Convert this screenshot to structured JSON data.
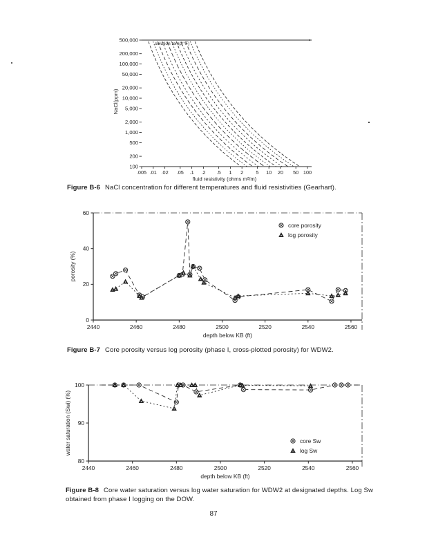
{
  "page": {
    "number": "87"
  },
  "figures": [
    {
      "id": "b6",
      "caption_label": "Figure B-6",
      "caption_text": "NaCl concentration for different temperatures and fluid resistivities (Gearhart)."
    },
    {
      "id": "b7",
      "caption_label": "Figure B-7",
      "caption_text": "Core porosity versus log porosity (phase I, cross-plotted porosity) for WDW2."
    },
    {
      "id": "b8",
      "caption_label": "Figure B-8",
      "caption_text": "Core water saturation versus log water saturation for WDW2 at designated depths. Log Sw obtained from phase I logging on the DOW."
    }
  ],
  "chart_data": [
    {
      "id": "b6",
      "type": "line",
      "log_x": true,
      "log_y": true,
      "annotation": "solution temp(°F)",
      "ylabel": "NaCl(ppm)",
      "xlabel": "fluid resistivity (ohms m²/m)",
      "xlim": [
        0.005,
        100
      ],
      "ylim": [
        100,
        500000
      ],
      "x_ticks": [
        {
          "label": ".005",
          "value": 0.005
        },
        {
          "label": ".01",
          "value": 0.01
        },
        {
          "label": ".02",
          "value": 0.02
        },
        {
          "label": ".05",
          "value": 0.05
        },
        {
          "label": ".1",
          "value": 0.1
        },
        {
          "label": ".2",
          "value": 0.2
        },
        {
          "label": ".5",
          "value": 0.5
        },
        {
          "label": "1",
          "value": 1
        },
        {
          "label": "2",
          "value": 2
        },
        {
          "label": "5",
          "value": 5
        },
        {
          "label": "10",
          "value": 10
        },
        {
          "label": "20",
          "value": 20
        },
        {
          "label": "50",
          "value": 50
        },
        {
          "label": "100",
          "value": 100
        }
      ],
      "y_ticks": [
        {
          "label": "500,000",
          "value": 500000
        },
        {
          "label": "200,000",
          "value": 200000
        },
        {
          "label": "100,000",
          "value": 100000
        },
        {
          "label": "50,000",
          "value": 50000
        },
        {
          "label": "20,000",
          "value": 20000
        },
        {
          "label": "10,000",
          "value": 10000
        },
        {
          "label": "5,000",
          "value": 5000
        },
        {
          "label": "2,000",
          "value": 2000
        },
        {
          "label": "1,000",
          "value": 1000
        },
        {
          "label": "500",
          "value": 500
        },
        {
          "label": "200",
          "value": 200
        },
        {
          "label": "100",
          "value": 100
        }
      ],
      "curves": [
        {
          "x_at_500000": 0.0075,
          "x_at_100": 1.9
        },
        {
          "x_at_500000": 0.0099,
          "x_at_100": 2.7
        },
        {
          "x_at_500000": 0.0131,
          "x_at_100": 3.83
        },
        {
          "x_at_500000": 0.0172,
          "x_at_100": 5.44
        },
        {
          "x_at_500000": 0.0228,
          "x_at_100": 7.73
        },
        {
          "x_at_500000": 0.03,
          "x_at_100": 10.97
        },
        {
          "x_at_500000": 0.0397,
          "x_at_100": 15.58
        },
        {
          "x_at_500000": 0.0524,
          "x_at_100": 22.12
        },
        {
          "x_at_500000": 0.0691,
          "x_at_100": 31.41
        },
        {
          "x_at_500000": 0.0913,
          "x_at_100": 44.61
        },
        {
          "x_at_500000": 0.1205,
          "x_at_100": 63.34
        }
      ]
    },
    {
      "id": "b7",
      "type": "scatter-line",
      "xlabel": "depth below KB  (ft)",
      "ylabel": "porosity (%)",
      "xlim": [
        2440,
        2565
      ],
      "ylim": [
        0,
        60
      ],
      "x_ticks": [
        2440,
        2460,
        2480,
        2500,
        2520,
        2540,
        2560
      ],
      "y_ticks": [
        0,
        20,
        40,
        60
      ],
      "legend": {
        "position": "top-right",
        "entries": [
          {
            "label": "core porosity",
            "marker": "circle-x"
          },
          {
            "label": "log porosity",
            "marker": "triangle"
          }
        ]
      },
      "series": [
        {
          "name": "core porosity",
          "marker": "circle-x",
          "dash": "6 4",
          "points": [
            [
              2449,
              24.5
            ],
            [
              2450.5,
              26
            ],
            [
              2455,
              28
            ],
            [
              2461.5,
              14
            ],
            [
              2463,
              13
            ],
            [
              2480,
              25
            ],
            [
              2481.5,
              25.5
            ],
            [
              2484,
              55
            ],
            [
              2485,
              25.5
            ],
            [
              2486.5,
              30
            ],
            [
              2489.5,
              29
            ],
            [
              2492,
              22.5
            ],
            [
              2506,
              11
            ],
            [
              2507.5,
              13
            ],
            [
              2540,
              17
            ],
            [
              2551,
              10.5
            ],
            [
              2554,
              17
            ],
            [
              2557.5,
              16.5
            ]
          ]
        },
        {
          "name": "log porosity",
          "marker": "triangle",
          "dash": "2 3",
          "points": [
            [
              2449,
              17
            ],
            [
              2450.5,
              17.5
            ],
            [
              2455,
              21.5
            ],
            [
              2461.5,
              13.5
            ],
            [
              2462.5,
              12.5
            ],
            [
              2480,
              25
            ],
            [
              2482,
              26.5
            ],
            [
              2485,
              25
            ],
            [
              2486.5,
              30
            ],
            [
              2490,
              23
            ],
            [
              2491.5,
              21
            ],
            [
              2506,
              12.5
            ],
            [
              2507.5,
              13.5
            ],
            [
              2540,
              15
            ],
            [
              2551,
              13.5
            ],
            [
              2554,
              14
            ],
            [
              2557.5,
              15
            ]
          ]
        }
      ]
    },
    {
      "id": "b8",
      "type": "scatter-line",
      "xlabel": "depth below KB  (ft)",
      "ylabel": "water saturation (Swi) (%)",
      "xlim": [
        2440,
        2565
      ],
      "ylim": [
        80,
        100
      ],
      "x_ticks": [
        2440,
        2460,
        2480,
        2500,
        2520,
        2540,
        2560
      ],
      "y_ticks": [
        80,
        90,
        100
      ],
      "legend": {
        "position": "bottom-right",
        "entries": [
          {
            "label": "core Sw",
            "marker": "circle-x"
          },
          {
            "label": "log Sw",
            "marker": "triangle"
          }
        ]
      },
      "series": [
        {
          "name": "core Sw",
          "marker": "circle-x",
          "dash": "6 4",
          "points": [
            [
              2446,
              100,
              0
            ],
            [
              2452,
              100
            ],
            [
              2456,
              100
            ],
            [
              2463,
              100
            ],
            [
              2480,
              95.5
            ],
            [
              2481,
              100
            ],
            [
              2483,
              100
            ],
            [
              2489,
              98.2
            ],
            [
              2509,
              100
            ],
            [
              2510.5,
              98.8
            ],
            [
              2541,
              98.7
            ],
            [
              2552,
              100
            ],
            [
              2555,
              100
            ],
            [
              2558,
              100
            ],
            [
              2563,
              100,
              0
            ]
          ]
        },
        {
          "name": "log Sw",
          "marker": "triangle",
          "dash": "2 3",
          "points": [
            [
              2452,
              100
            ],
            [
              2456,
              100
            ],
            [
              2464,
              95.8
            ],
            [
              2479,
              93.8
            ],
            [
              2480.5,
              100
            ],
            [
              2482,
              100
            ],
            [
              2487,
              100
            ],
            [
              2488.5,
              100
            ],
            [
              2490.5,
              97.3
            ],
            [
              2509,
              100
            ],
            [
              2510,
              99.9
            ],
            [
              2541,
              99.8
            ]
          ]
        }
      ]
    }
  ]
}
